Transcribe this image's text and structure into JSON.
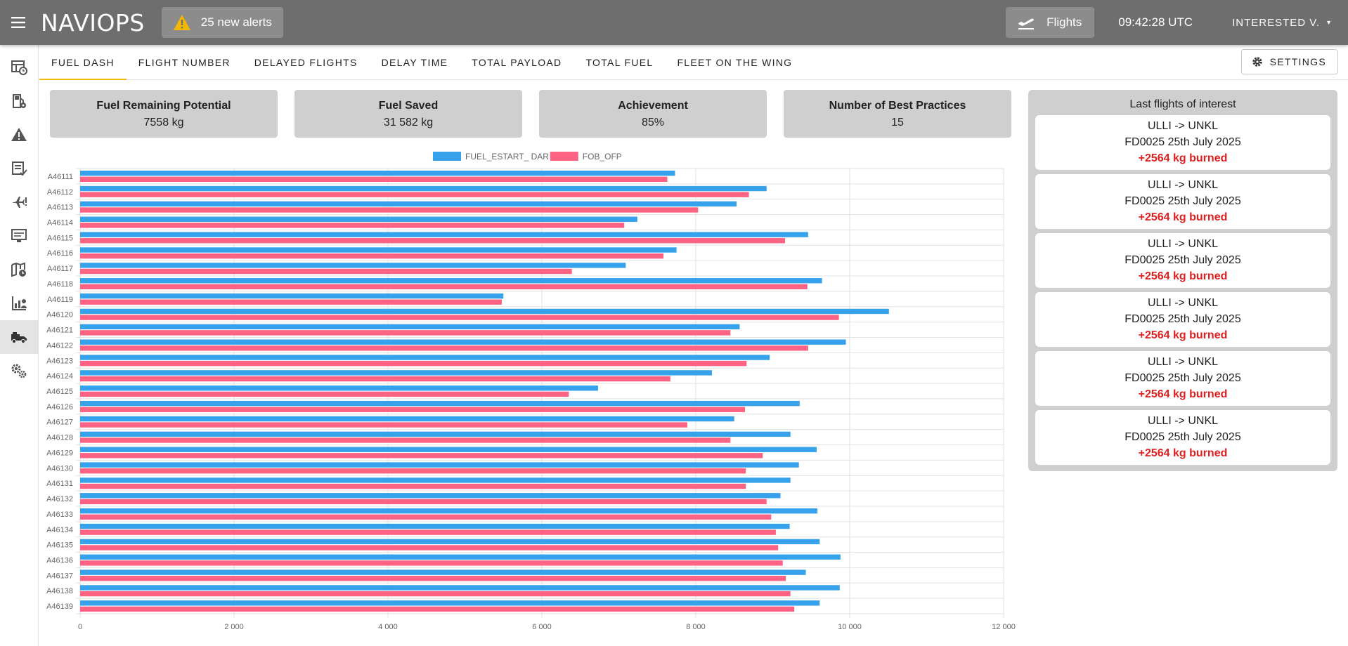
{
  "app": {
    "title": "NAVIOPS"
  },
  "header": {
    "alerts_label": "25 new alerts",
    "flights_label": "Flights",
    "clock": "09:42:28 UTC",
    "user": "INTERESTED V."
  },
  "sidebar": {
    "items": [
      {
        "icon": "dashboard-clock-icon"
      },
      {
        "icon": "fuel-settings-icon"
      },
      {
        "icon": "warning-icon"
      },
      {
        "icon": "checklist-icon"
      },
      {
        "icon": "plane-alert-icon"
      },
      {
        "icon": "monitor-icon"
      },
      {
        "icon": "map-clock-icon"
      },
      {
        "icon": "chart-user-icon"
      },
      {
        "icon": "fuel-truck-icon",
        "active": true
      },
      {
        "icon": "gears-icon"
      }
    ]
  },
  "tabs": [
    {
      "label": "FUEL DASH",
      "active": true
    },
    {
      "label": "FLIGHT NUMBER"
    },
    {
      "label": "DELAYED FLIGHTS"
    },
    {
      "label": "DELAY TIME"
    },
    {
      "label": "TOTAL PAYLOAD"
    },
    {
      "label": "TOTAL FUEL"
    },
    {
      "label": "FLEET ON THE WING"
    }
  ],
  "settings_label": "SETTINGS",
  "kpis": [
    {
      "label": "Fuel Remaining Potential",
      "value": "7558 kg"
    },
    {
      "label": "Fuel Saved",
      "value": "31 582 kg"
    },
    {
      "label": "Achievement",
      "value": "85%"
    },
    {
      "label": "Number of Best Practices",
      "value": "15"
    }
  ],
  "panel": {
    "title": "Last flights of interest",
    "flights": [
      {
        "route": "ULLI -> UNKL",
        "info": "FD0025 25th July 2025",
        "burned": "+2564 kg burned"
      },
      {
        "route": "ULLI -> UNKL",
        "info": "FD0025 25th July 2025",
        "burned": "+2564 kg burned"
      },
      {
        "route": "ULLI -> UNKL",
        "info": "FD0025 25th July 2025",
        "burned": "+2564 kg burned"
      },
      {
        "route": "ULLI -> UNKL",
        "info": "FD0025 25th July 2025",
        "burned": "+2564 kg burned"
      },
      {
        "route": "ULLI -> UNKL",
        "info": "FD0025 25th July 2025",
        "burned": "+2564 kg burned"
      },
      {
        "route": "ULLI -> UNKL",
        "info": "FD0025 25th July 2025",
        "burned": "+2564 kg burned"
      }
    ]
  },
  "colors": {
    "series1": "#36a2eb",
    "series2": "#ff6384",
    "accent": "#f5b800",
    "burn": "#e02020"
  },
  "chart_data": {
    "type": "bar",
    "orientation": "horizontal",
    "categories": [
      "A46111",
      "A46112",
      "A46113",
      "A46114",
      "A46115",
      "A46116",
      "A46117",
      "A46118",
      "A46119",
      "A46120",
      "A46121",
      "A46122",
      "A46123",
      "A46124",
      "A46125",
      "A46126",
      "A46127",
      "A46128",
      "A46129",
      "A46130",
      "A46131",
      "A46132",
      "A46133",
      "A46134",
      "A46135",
      "A46136",
      "A46137",
      "A46138",
      "A46139"
    ],
    "series": [
      {
        "name": "FUEL_ESTART_ DAR",
        "color": "#36a2eb",
        "values": [
          7730,
          8920,
          8530,
          7240,
          9460,
          7750,
          7090,
          9640,
          5500,
          10510,
          8570,
          9950,
          8960,
          8210,
          6730,
          9350,
          8500,
          9230,
          9570,
          9340,
          9230,
          9100,
          9580,
          9220,
          9610,
          9880,
          9430,
          9870,
          9610
        ]
      },
      {
        "name": "FOB_OFP",
        "color": "#ff6384",
        "values": [
          7630,
          8690,
          8030,
          7070,
          9160,
          7580,
          6390,
          9450,
          5480,
          9860,
          8450,
          9460,
          8660,
          7670,
          6350,
          8640,
          7890,
          8450,
          8870,
          8650,
          8650,
          8920,
          8980,
          9040,
          9070,
          9130,
          9170,
          9230,
          9280
        ]
      }
    ],
    "xlim": [
      0,
      12000
    ],
    "xticks": [
      "0",
      "2 000",
      "4 000",
      "6 000",
      "8 000",
      "10 000",
      "12 000"
    ],
    "legend": "top",
    "grid": true
  }
}
